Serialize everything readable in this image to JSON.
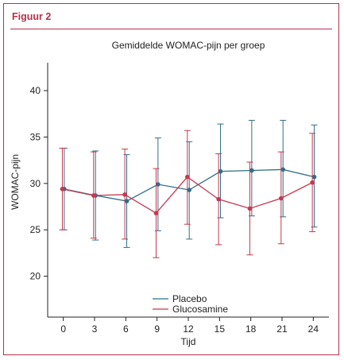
{
  "figure": {
    "label": "Figuur 2"
  },
  "chart_data": {
    "type": "line",
    "title": "Gemiddelde WOMAC-pijn per groep",
    "xlabel": "Tijd",
    "ylabel": "WOMAC-pijn",
    "x": [
      0,
      3,
      6,
      9,
      12,
      15,
      18,
      21,
      24
    ],
    "xticks": [
      "0",
      "3",
      "6",
      "9",
      "12",
      "15",
      "18",
      "21",
      "24"
    ],
    "yticks": [
      "20",
      "25",
      "30",
      "35",
      "40"
    ],
    "ytick_values": [
      20,
      25,
      30,
      35,
      40
    ],
    "ylim": [
      15.6,
      43
    ],
    "xlim": [
      -1.5,
      25.5
    ],
    "grid": false,
    "legend_position": "bottom-left",
    "series": [
      {
        "name": "Placebo",
        "color": "#2f6e8a",
        "values": [
          29.4,
          28.7,
          28.1,
          29.9,
          29.3,
          31.3,
          31.4,
          31.5,
          30.7
        ],
        "lower": [
          25.0,
          23.9,
          23.1,
          24.9,
          24.0,
          26.3,
          26.5,
          26.4,
          25.3
        ],
        "upper": [
          33.8,
          33.5,
          33.1,
          34.9,
          34.5,
          36.4,
          36.8,
          36.8,
          36.3
        ]
      },
      {
        "name": "Glucosamine",
        "color": "#c7374e",
        "values": [
          29.4,
          28.7,
          28.8,
          26.8,
          30.7,
          28.3,
          27.3,
          28.4,
          30.1
        ],
        "lower": [
          25.0,
          24.1,
          24.0,
          22.0,
          25.6,
          23.4,
          22.3,
          23.5,
          24.8
        ],
        "upper": [
          33.8,
          33.4,
          33.7,
          31.6,
          35.7,
          33.2,
          32.3,
          33.4,
          35.4
        ]
      }
    ]
  }
}
